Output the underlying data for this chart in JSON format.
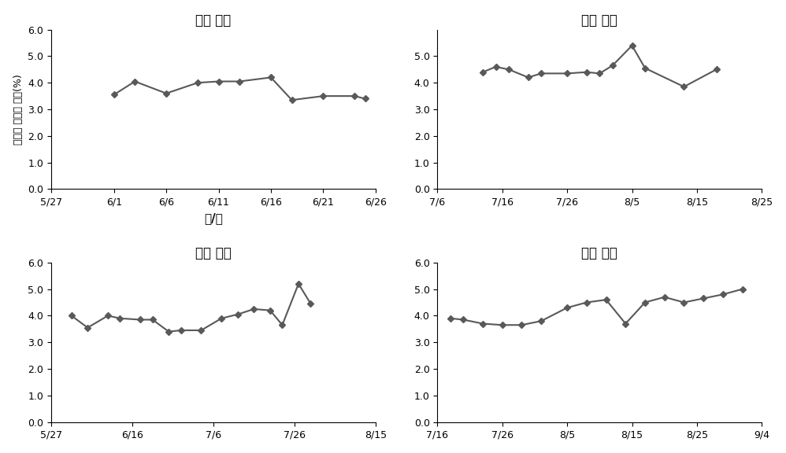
{
  "subplot1": {
    "title": "아산 영인",
    "xlabel": "월/일",
    "ylabel": "가용성 고형물 함량(%)",
    "x_nums": [
      1,
      3,
      6,
      9,
      11,
      13,
      16,
      18,
      21,
      24,
      25
    ],
    "y_vals": [
      3.55,
      4.05,
      3.6,
      4.0,
      4.05,
      4.05,
      4.2,
      3.35,
      3.5,
      3.5,
      3.4
    ],
    "xlim_labels": [
      "5/27",
      "6/1",
      "6/6",
      "6/11",
      "6/16",
      "6/21",
      "6/26"
    ],
    "xlim_nums": [
      -5,
      1,
      6,
      11,
      16,
      21,
      26
    ],
    "ylim": [
      0.0,
      6.0
    ],
    "yticks": [
      0.0,
      1.0,
      2.0,
      3.0,
      4.0,
      5.0,
      6.0
    ],
    "title_bold": false
  },
  "subplot2": {
    "title": "아산 기타",
    "x_nums": [
      13,
      15,
      17,
      20,
      22,
      26,
      29,
      31,
      33,
      36,
      38,
      44,
      49
    ],
    "y_vals": [
      4.4,
      4.6,
      4.5,
      4.2,
      4.35,
      4.35,
      4.4,
      4.35,
      4.65,
      5.4,
      4.55,
      3.85,
      4.5
    ],
    "xlim_labels": [
      "7/6",
      "7/16",
      "7/26",
      "8/5",
      "8/15",
      "8/25"
    ],
    "xlim_nums": [
      6,
      16,
      26,
      36,
      46,
      56
    ],
    "ylim": [
      0.0,
      6.0
    ],
    "yticks": [
      0.0,
      1.0,
      2.0,
      3.0,
      4.0,
      5.0
    ],
    "title_bold": true
  },
  "subplot3": {
    "title": "아산 둔포",
    "x_nums": [
      1,
      5,
      10,
      13,
      18,
      21,
      25,
      28,
      33,
      38,
      42,
      46,
      50,
      53,
      57,
      60
    ],
    "y_vals": [
      4.0,
      3.55,
      4.0,
      3.9,
      3.85,
      3.85,
      3.4,
      3.45,
      3.45,
      3.9,
      4.05,
      4.25,
      4.2,
      3.65,
      5.2,
      4.45
    ],
    "xlim_labels": [
      "5/27",
      "6/16",
      "7/6",
      "7/26",
      "8/15"
    ],
    "xlim_nums": [
      -4,
      16,
      36,
      56,
      76
    ],
    "ylim": [
      0.0,
      6.0
    ],
    "yticks": [
      0.0,
      1.0,
      2.0,
      3.0,
      4.0,
      5.0,
      6.0
    ],
    "title_bold": true
  },
  "subplot4": {
    "title": "포항 기계",
    "x_nums": [
      18,
      20,
      23,
      26,
      29,
      32,
      36,
      39,
      42,
      45,
      48,
      51,
      54,
      57,
      60,
      63
    ],
    "y_vals": [
      3.9,
      3.85,
      3.7,
      3.65,
      3.65,
      3.8,
      4.3,
      4.5,
      4.6,
      3.7,
      4.5,
      4.7,
      4.5,
      4.65,
      4.8,
      5.0
    ],
    "xlim_labels": [
      "7/16",
      "7/26",
      "8/5",
      "8/15",
      "8/25",
      "9/4"
    ],
    "xlim_nums": [
      16,
      26,
      36,
      46,
      56,
      66
    ],
    "ylim": [
      0.0,
      6.0
    ],
    "yticks": [
      0.0,
      1.0,
      2.0,
      3.0,
      4.0,
      5.0,
      6.0
    ],
    "title_bold": true
  },
  "line_color": "#595959",
  "marker": "D",
  "marker_size": 4,
  "line_width": 1.5,
  "title_fontsize": 12,
  "label_fontsize": 9,
  "tick_fontsize": 9,
  "background": "#ffffff"
}
